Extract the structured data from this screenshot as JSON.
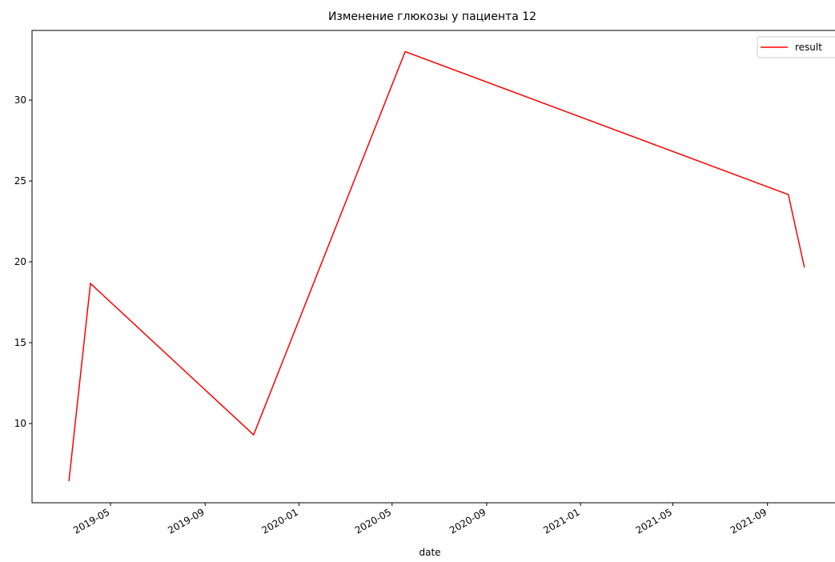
{
  "chart_data": {
    "type": "line",
    "title": "Изменение глюкозы у пациента 12",
    "x_label": "date",
    "x": [
      "2019-03-08",
      "2019-04-05",
      "2019-11-03",
      "2020-05-18",
      "2021-09-28",
      "2021-10-19"
    ],
    "series": [
      {
        "name": "result",
        "color": "#ff0000",
        "values": [
          6.44,
          18.66,
          9.3,
          33.0,
          24.16,
          19.65
        ]
      }
    ],
    "xlim": [
      "2019-01-19",
      "2021-12-05"
    ],
    "xticks": [
      {
        "value": "2019-05-01",
        "label": "2019-05"
      },
      {
        "value": "2019-09-01",
        "label": "2019-09"
      },
      {
        "value": "2020-01-01",
        "label": "2020-01"
      },
      {
        "value": "2020-05-01",
        "label": "2020-05"
      },
      {
        "value": "2020-09-01",
        "label": "2020-09"
      },
      {
        "value": "2021-01-01",
        "label": "2021-01"
      },
      {
        "value": "2021-05-01",
        "label": "2021-05"
      },
      {
        "value": "2021-09-01",
        "label": "2021-09"
      }
    ],
    "ylim": [
      5.1,
      34.31
    ],
    "yticks": [
      10,
      15,
      20,
      25,
      30
    ],
    "grid": false,
    "legend": "upper right"
  }
}
